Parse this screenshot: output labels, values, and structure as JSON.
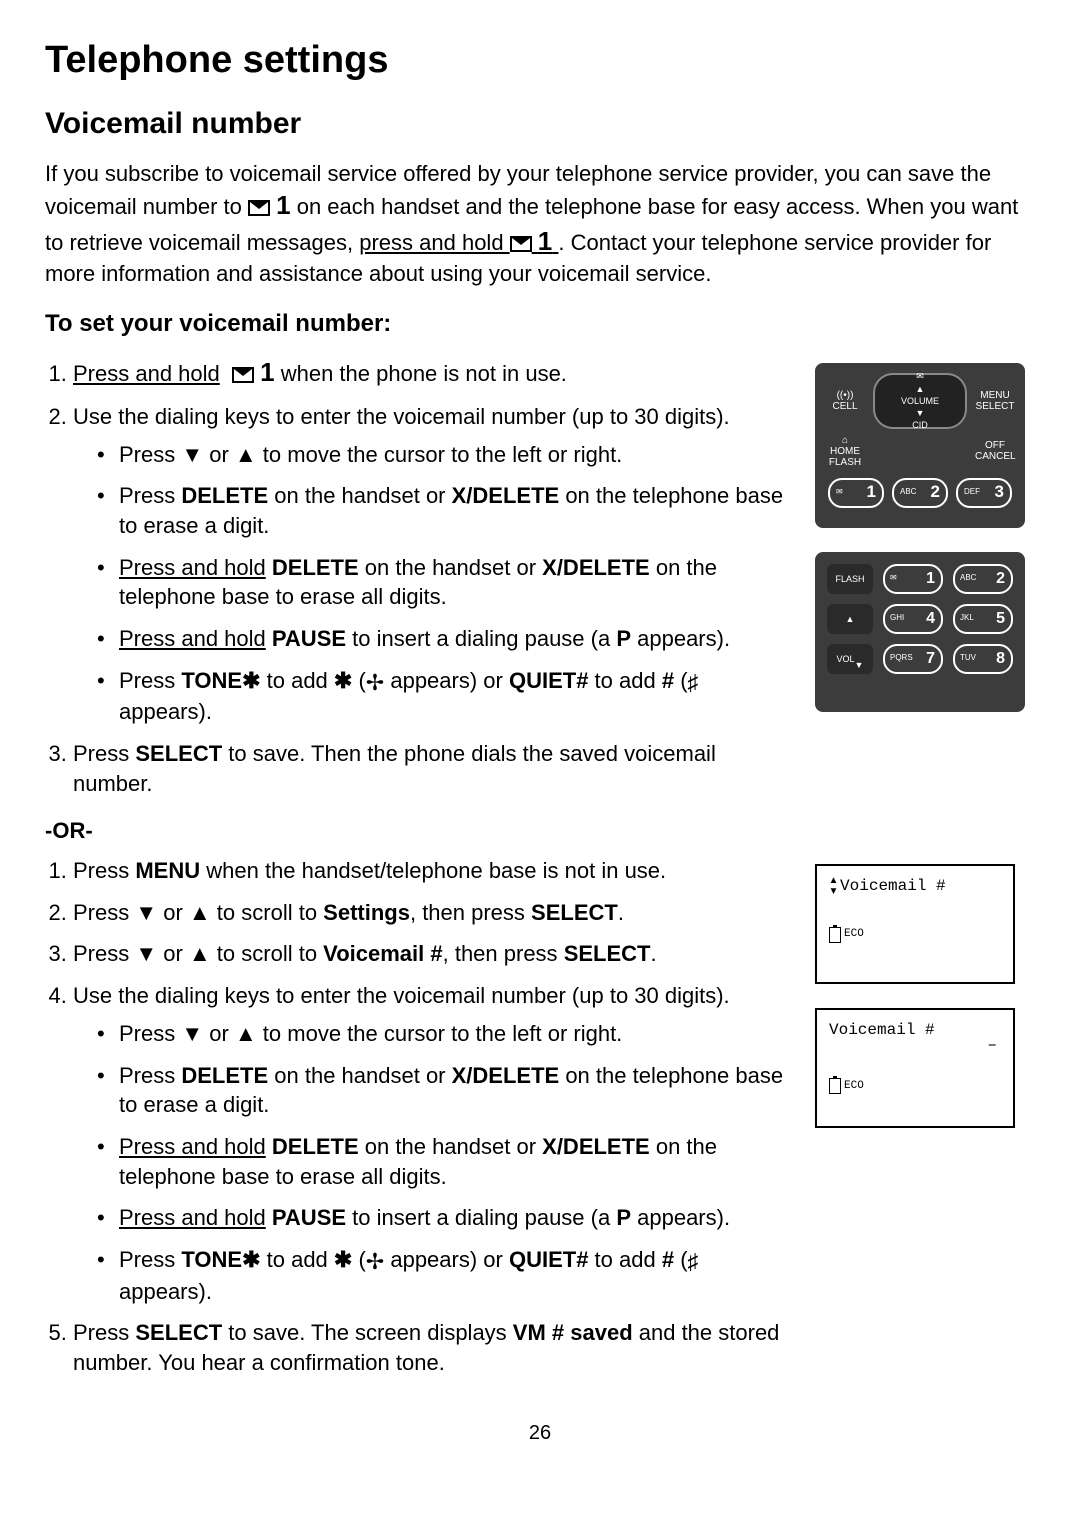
{
  "page_title": "Telephone settings",
  "section_title": "Voicemail number",
  "intro_parts": {
    "p1": "If you subscribe to voicemail service offered by your telephone service provider, you can save the voicemail number to ",
    "key1": "1",
    "p2": " on each handset and the telephone base for easy access. When you want to retrieve voicemail messages, ",
    "hold": "press and hold ",
    "key2": "1",
    "p3": ". Contact your telephone service provider for more information and assistance about using your voicemail service."
  },
  "subheading": "To set your voicemail number:",
  "steps_a": {
    "s1_a": "Press and hold",
    "s1_key": "1",
    "s1_b": " when the phone is not in use.",
    "s2": "Use the dialing keys to enter the voicemail number (up to 30 digits).",
    "s3_a": "Press ",
    "s3_b": "SELECT",
    "s3_c": " to save. Then the phone dials the saved voicemail number."
  },
  "bullets": {
    "b1": "Press ▼ or ▲ to move the cursor to the left or right.",
    "b2_a": "Press ",
    "b2_b": "DELETE",
    "b2_c": " on the handset or ",
    "b2_d": "X/DELETE",
    "b2_e": " on the telephone base to erase a digit.",
    "b3_a": "Press and hold",
    "b3_b": " DELETE",
    "b3_c": " on the handset or ",
    "b3_d": "X/DELETE",
    "b3_e": " on the telephone base to erase all digits.",
    "b4_a": "Press and hold",
    "b4_b": " PAUSE",
    "b4_c": " to insert a dialing pause (a ",
    "b4_d": "P",
    "b4_e": " appears).",
    "b5_a": "Press ",
    "b5_b": "TONE✱",
    "b5_c": " to add ",
    "b5_d": "✱",
    "b5_e": " (",
    "b5_f": " appears) or ",
    "b5_g": "QUIET#",
    "b5_h": " to add ",
    "b5_i": "#",
    "b5_j": " (",
    "b5_k": " appears)."
  },
  "or_label": "-OR-",
  "steps_b": {
    "s1_a": "Press ",
    "s1_b": "MENU",
    "s1_c": " when the handset/telephone base is not in use.",
    "s2_a": "Press ▼ or ▲ to scroll to ",
    "s2_b": "Settings",
    "s2_c": ", then press ",
    "s2_d": "SELECT",
    "s2_e": ".",
    "s3_a": "Press ▼ or ▲ to scroll to ",
    "s3_b": "Voicemail #",
    "s3_c": ", then press ",
    "s3_d": "SELECT",
    "s3_e": ".",
    "s4": "Use the dialing keys to enter the voicemail number (up to 30 digits).",
    "s5_a": "Press ",
    "s5_b": "SELECT",
    "s5_c": " to save. The screen displays ",
    "s5_d": "VM # saved",
    "s5_e": " and the stored number. You hear a confirmation tone."
  },
  "bullets_b": {
    "b4_c2": " to insert a dialing pause (a ",
    "b4_e2": " appears)."
  },
  "phone_top": {
    "cell": "CELL",
    "menu": "MENU",
    "select": "SELECT",
    "home": "HOME",
    "flash": "FLASH",
    "off": "OFF",
    "cancel": "CANCEL",
    "volume": "VOLUME",
    "cid": "CID",
    "k1_sub": "",
    "k1": "1",
    "k2_sub": "ABC",
    "k2": "2",
    "k3_sub": "DEF",
    "k3": "3"
  },
  "phone_bottom": {
    "flash": "FLASH",
    "vol": "VOL",
    "k1": "1",
    "k2_sub": "ABC",
    "k2": "2",
    "k4_sub": "GHI",
    "k4": "4",
    "k5_sub": "JKL",
    "k5": "5",
    "k7_sub": "PQRS",
    "k7": "7",
    "k8_sub": "TUV",
    "k8": "8"
  },
  "lcd1": {
    "title": "Voicemail #",
    "eco": "ECO"
  },
  "lcd2": {
    "title": "Voicemail #",
    "eco": "ECO",
    "cursor": "–"
  },
  "page_number": "26"
}
